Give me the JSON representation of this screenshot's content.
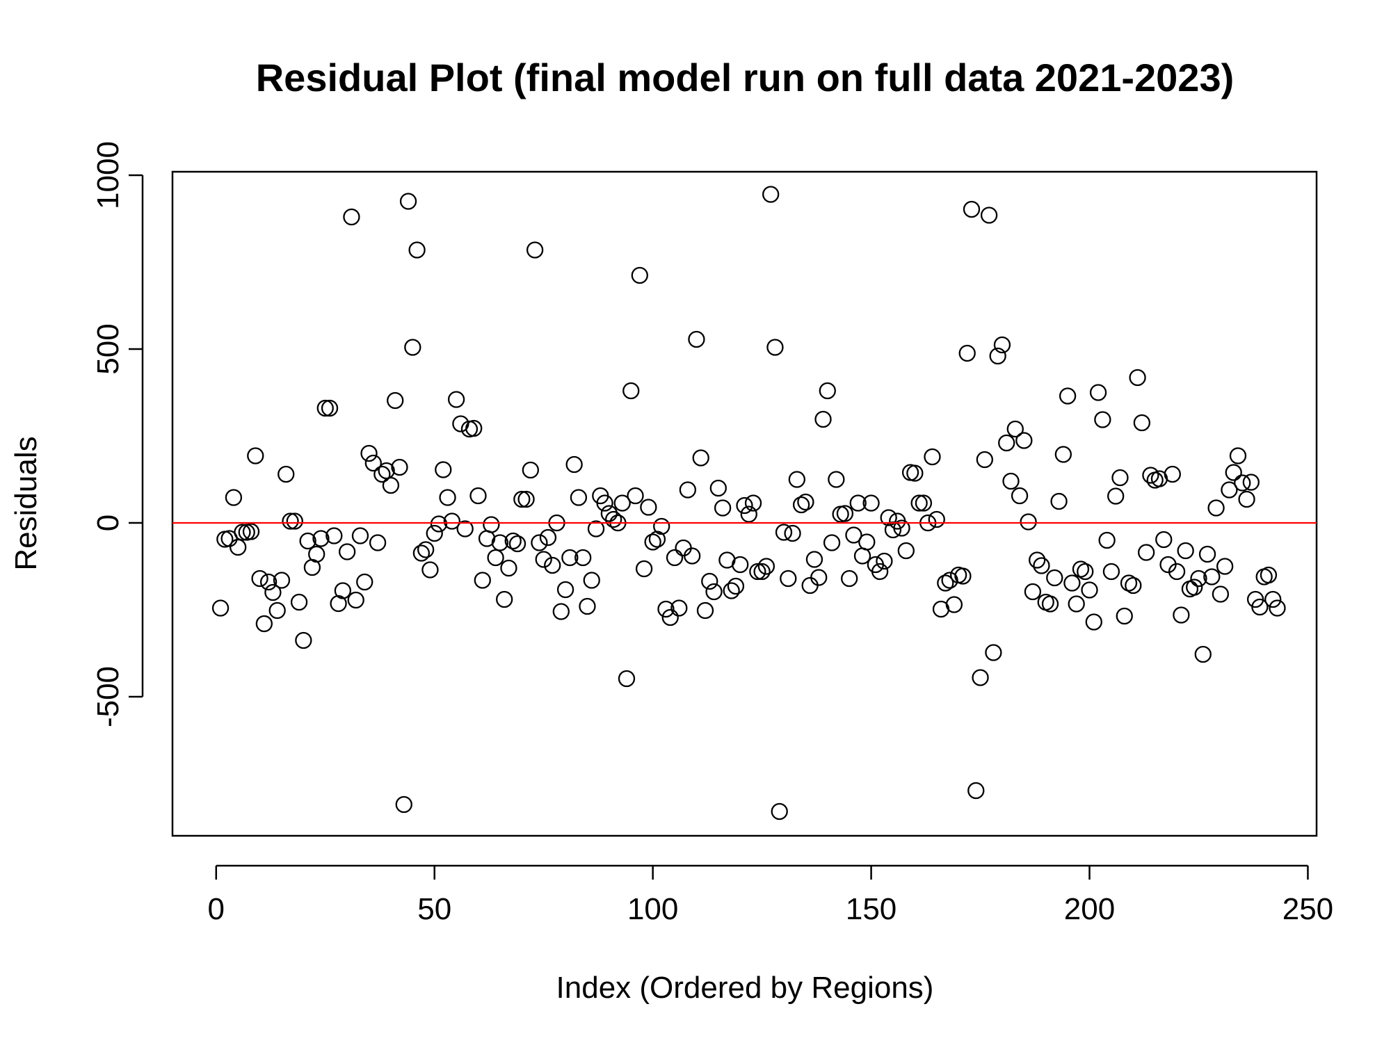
{
  "chart_data": {
    "type": "scatter",
    "title": "Residual Plot (final model run on full data 2021-2023)",
    "xlabel": "Index (Ordered by Regions)",
    "ylabel": "Residuals",
    "xlim": [
      -10,
      252
    ],
    "ylim": [
      -900,
      1010
    ],
    "xticks": [
      0,
      50,
      100,
      150,
      200,
      250
    ],
    "yticks": [
      -500,
      0,
      500,
      1000
    ],
    "grid": false,
    "legend": "none",
    "reference_line": {
      "y": 0,
      "color": "#ff0000"
    },
    "marker": {
      "shape": "open-circle",
      "color": "#000000"
    },
    "points": [
      [
        1,
        -245
      ],
      [
        2,
        -47
      ],
      [
        3,
        -45
      ],
      [
        4,
        73
      ],
      [
        5,
        -70
      ],
      [
        6,
        -27
      ],
      [
        7,
        -27
      ],
      [
        8,
        -25
      ],
      [
        9,
        193
      ],
      [
        10,
        -160
      ],
      [
        11,
        -290
      ],
      [
        12,
        -170
      ],
      [
        13,
        -200
      ],
      [
        14,
        -252
      ],
      [
        15,
        -165
      ],
      [
        16,
        140
      ],
      [
        17,
        5
      ],
      [
        18,
        5
      ],
      [
        19,
        -228
      ],
      [
        20,
        -338
      ],
      [
        21,
        -52
      ],
      [
        22,
        -128
      ],
      [
        23,
        -90
      ],
      [
        24,
        -45
      ],
      [
        25,
        330
      ],
      [
        26,
        330
      ],
      [
        27,
        -37
      ],
      [
        28,
        -232
      ],
      [
        29,
        -195
      ],
      [
        30,
        -83
      ],
      [
        31,
        880
      ],
      [
        32,
        -222
      ],
      [
        33,
        -37
      ],
      [
        34,
        -170
      ],
      [
        35,
        200
      ],
      [
        36,
        172
      ],
      [
        37,
        -57
      ],
      [
        38,
        140
      ],
      [
        39,
        150
      ],
      [
        40,
        108
      ],
      [
        41,
        352
      ],
      [
        42,
        160
      ],
      [
        43,
        -810
      ],
      [
        44,
        925
      ],
      [
        45,
        505
      ],
      [
        46,
        785
      ],
      [
        47,
        -87
      ],
      [
        48,
        -77
      ],
      [
        49,
        -135
      ],
      [
        50,
        -30
      ],
      [
        51,
        -3
      ],
      [
        52,
        153
      ],
      [
        53,
        73
      ],
      [
        54,
        5
      ],
      [
        55,
        355
      ],
      [
        56,
        285
      ],
      [
        57,
        -17
      ],
      [
        58,
        270
      ],
      [
        59,
        272
      ],
      [
        60,
        78
      ],
      [
        61,
        -165
      ],
      [
        62,
        -45
      ],
      [
        63,
        -5
      ],
      [
        64,
        -100
      ],
      [
        65,
        -57
      ],
      [
        66,
        -220
      ],
      [
        67,
        -130
      ],
      [
        68,
        -52
      ],
      [
        69,
        -60
      ],
      [
        70,
        68
      ],
      [
        71,
        68
      ],
      [
        72,
        152
      ],
      [
        73,
        785
      ],
      [
        74,
        -57
      ],
      [
        75,
        -105
      ],
      [
        76,
        -42
      ],
      [
        77,
        -122
      ],
      [
        78,
        0
      ],
      [
        79,
        -255
      ],
      [
        80,
        -192
      ],
      [
        81,
        -100
      ],
      [
        82,
        168
      ],
      [
        83,
        73
      ],
      [
        84,
        -100
      ],
      [
        85,
        -240
      ],
      [
        86,
        -165
      ],
      [
        87,
        -17
      ],
      [
        88,
        78
      ],
      [
        89,
        57
      ],
      [
        90,
        27
      ],
      [
        91,
        10
      ],
      [
        92,
        0
      ],
      [
        93,
        57
      ],
      [
        94,
        -448
      ],
      [
        95,
        380
      ],
      [
        96,
        78
      ],
      [
        97,
        712
      ],
      [
        98,
        -132
      ],
      [
        99,
        45
      ],
      [
        100,
        -55
      ],
      [
        101,
        -47
      ],
      [
        102,
        -10
      ],
      [
        103,
        -248
      ],
      [
        104,
        -272
      ],
      [
        105,
        -100
      ],
      [
        106,
        -245
      ],
      [
        107,
        -72
      ],
      [
        108,
        95
      ],
      [
        109,
        -95
      ],
      [
        110,
        528
      ],
      [
        111,
        187
      ],
      [
        112,
        -252
      ],
      [
        113,
        -168
      ],
      [
        114,
        -198
      ],
      [
        115,
        100
      ],
      [
        116,
        43
      ],
      [
        117,
        -107
      ],
      [
        118,
        -195
      ],
      [
        119,
        -182
      ],
      [
        120,
        -120
      ],
      [
        121,
        50
      ],
      [
        122,
        25
      ],
      [
        123,
        57
      ],
      [
        124,
        -140
      ],
      [
        125,
        -140
      ],
      [
        126,
        -125
      ],
      [
        127,
        945
      ],
      [
        128,
        505
      ],
      [
        129,
        -830
      ],
      [
        130,
        -27
      ],
      [
        131,
        -160
      ],
      [
        132,
        -30
      ],
      [
        133,
        125
      ],
      [
        134,
        52
      ],
      [
        135,
        60
      ],
      [
        136,
        -180
      ],
      [
        137,
        -105
      ],
      [
        138,
        -157
      ],
      [
        139,
        298
      ],
      [
        140,
        380
      ],
      [
        141,
        -57
      ],
      [
        142,
        125
      ],
      [
        143,
        25
      ],
      [
        144,
        27
      ],
      [
        145,
        -160
      ],
      [
        146,
        -35
      ],
      [
        147,
        57
      ],
      [
        148,
        -95
      ],
      [
        149,
        -55
      ],
      [
        150,
        57
      ],
      [
        151,
        -120
      ],
      [
        152,
        -140
      ],
      [
        153,
        -110
      ],
      [
        154,
        15
      ],
      [
        155,
        -20
      ],
      [
        156,
        5
      ],
      [
        157,
        -15
      ],
      [
        158,
        -80
      ],
      [
        159,
        145
      ],
      [
        160,
        143
      ],
      [
        161,
        57
      ],
      [
        162,
        57
      ],
      [
        163,
        0
      ],
      [
        164,
        190
      ],
      [
        165,
        10
      ],
      [
        166,
        -248
      ],
      [
        167,
        -173
      ],
      [
        168,
        -165
      ],
      [
        169,
        -235
      ],
      [
        170,
        -150
      ],
      [
        171,
        -153
      ],
      [
        172,
        488
      ],
      [
        173,
        902
      ],
      [
        174,
        -770
      ],
      [
        175,
        -445
      ],
      [
        176,
        182
      ],
      [
        177,
        885
      ],
      [
        178,
        -373
      ],
      [
        179,
        480
      ],
      [
        180,
        512
      ],
      [
        181,
        230
      ],
      [
        182,
        120
      ],
      [
        183,
        270
      ],
      [
        184,
        78
      ],
      [
        185,
        237
      ],
      [
        186,
        3
      ],
      [
        187,
        -198
      ],
      [
        188,
        -107
      ],
      [
        189,
        -123
      ],
      [
        190,
        -228
      ],
      [
        191,
        -233
      ],
      [
        192,
        -158
      ],
      [
        193,
        62
      ],
      [
        194,
        197
      ],
      [
        195,
        365
      ],
      [
        196,
        -173
      ],
      [
        197,
        -233
      ],
      [
        198,
        -133
      ],
      [
        199,
        -140
      ],
      [
        200,
        -193
      ],
      [
        201,
        -285
      ],
      [
        202,
        375
      ],
      [
        203,
        297
      ],
      [
        204,
        -50
      ],
      [
        205,
        -140
      ],
      [
        206,
        77
      ],
      [
        207,
        130
      ],
      [
        208,
        -268
      ],
      [
        209,
        -173
      ],
      [
        210,
        -180
      ],
      [
        211,
        418
      ],
      [
        212,
        288
      ],
      [
        213,
        -85
      ],
      [
        214,
        137
      ],
      [
        215,
        123
      ],
      [
        216,
        127
      ],
      [
        217,
        -48
      ],
      [
        218,
        -120
      ],
      [
        219,
        140
      ],
      [
        220,
        -140
      ],
      [
        221,
        -265
      ],
      [
        222,
        -80
      ],
      [
        223,
        -190
      ],
      [
        224,
        -185
      ],
      [
        225,
        -160
      ],
      [
        226,
        -378
      ],
      [
        227,
        -90
      ],
      [
        228,
        -155
      ],
      [
        229,
        43
      ],
      [
        230,
        -205
      ],
      [
        231,
        -125
      ],
      [
        232,
        95
      ],
      [
        233,
        145
      ],
      [
        234,
        193
      ],
      [
        235,
        115
      ],
      [
        236,
        68
      ],
      [
        237,
        117
      ],
      [
        238,
        -220
      ],
      [
        239,
        -242
      ],
      [
        240,
        -155
      ],
      [
        241,
        -150
      ],
      [
        242,
        -220
      ],
      [
        243,
        -245
      ]
    ]
  }
}
